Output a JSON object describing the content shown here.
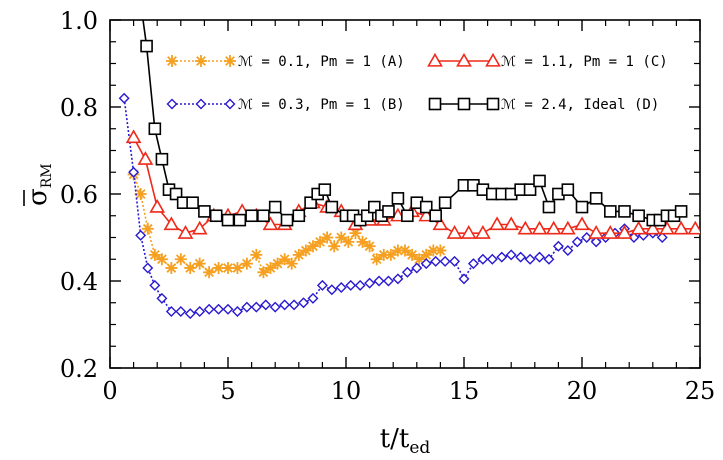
{
  "chart_data": {
    "type": "line",
    "xlabel": "t/t",
    "xlabel_sub": "ed",
    "ylabel": "σ",
    "ylabel_sub": "RM",
    "xlim": [
      0,
      25
    ],
    "ylim": [
      0.2,
      1.0
    ],
    "xticks": [
      0,
      5,
      10,
      15,
      20,
      25
    ],
    "xtick_labels": [
      "0",
      "5",
      "10",
      "15",
      "20",
      "25"
    ],
    "yticks": [
      0.2,
      0.4,
      0.6,
      0.8,
      1.0
    ],
    "ytick_labels": [
      "0.2",
      "0.4",
      "0.6",
      "0.8",
      "1.0"
    ],
    "grid": false,
    "legend_position": "top",
    "series": [
      {
        "name": "ℳ = 0.1, Pm = 1 (A)",
        "color": "#f5a020",
        "marker": "asterisk",
        "linestyle": "dotted",
        "x": [
          1.0,
          1.3,
          1.6,
          1.9,
          2.2,
          2.6,
          3.0,
          3.4,
          3.8,
          4.2,
          4.6,
          5.0,
          5.4,
          5.8,
          6.2,
          6.5,
          6.8,
          7.1,
          7.4,
          7.7,
          8.0,
          8.3,
          8.6,
          8.9,
          9.2,
          9.5,
          9.8,
          10.1,
          10.4,
          10.7,
          11.0,
          11.3,
          11.6,
          11.9,
          12.2,
          12.5,
          12.8,
          13.1,
          13.4,
          13.7,
          14.0
        ],
        "y": [
          0.645,
          0.6,
          0.52,
          0.46,
          0.45,
          0.43,
          0.45,
          0.43,
          0.44,
          0.42,
          0.43,
          0.43,
          0.43,
          0.44,
          0.46,
          0.42,
          0.43,
          0.44,
          0.45,
          0.44,
          0.46,
          0.47,
          0.48,
          0.49,
          0.5,
          0.48,
          0.5,
          0.49,
          0.51,
          0.49,
          0.48,
          0.45,
          0.46,
          0.46,
          0.47,
          0.47,
          0.46,
          0.45,
          0.46,
          0.47,
          0.47
        ]
      },
      {
        "name": "ℳ = 0.3, Pm = 1 (B)",
        "color": "#2a1ad0",
        "marker": "diamond",
        "linestyle": "dotted",
        "x": [
          0.6,
          1.0,
          1.3,
          1.6,
          1.9,
          2.2,
          2.6,
          3.0,
          3.4,
          3.8,
          4.2,
          4.6,
          5.0,
          5.4,
          5.8,
          6.2,
          6.6,
          7.0,
          7.4,
          7.8,
          8.2,
          8.6,
          9.0,
          9.4,
          9.8,
          10.2,
          10.6,
          11.0,
          11.4,
          11.8,
          12.2,
          12.6,
          13.0,
          13.4,
          13.8,
          14.2,
          14.6,
          15.0,
          15.4,
          15.8,
          16.2,
          16.6,
          17.0,
          17.4,
          17.8,
          18.2,
          18.6,
          19.0,
          19.4,
          19.8,
          20.2,
          20.6,
          21.0,
          21.4,
          21.8,
          22.2,
          22.6,
          23.0,
          23.4
        ],
        "y": [
          0.82,
          0.65,
          0.505,
          0.43,
          0.39,
          0.36,
          0.33,
          0.33,
          0.325,
          0.33,
          0.335,
          0.335,
          0.335,
          0.33,
          0.34,
          0.34,
          0.345,
          0.34,
          0.345,
          0.345,
          0.35,
          0.36,
          0.39,
          0.38,
          0.385,
          0.39,
          0.39,
          0.395,
          0.4,
          0.4,
          0.405,
          0.42,
          0.43,
          0.44,
          0.445,
          0.445,
          0.445,
          0.405,
          0.44,
          0.45,
          0.45,
          0.455,
          0.46,
          0.455,
          0.45,
          0.455,
          0.45,
          0.48,
          0.47,
          0.49,
          0.5,
          0.49,
          0.5,
          0.51,
          0.52,
          0.5,
          0.505,
          0.51,
          0.5
        ]
      },
      {
        "name": "ℳ = 1.1, Pm = 1 (C)",
        "color": "#ee2a1a",
        "marker": "triangle",
        "linestyle": "solid",
        "x": [
          1.0,
          1.5,
          2.0,
          2.6,
          3.2,
          3.8,
          4.4,
          5.0,
          5.6,
          6.2,
          6.8,
          7.4,
          8.0,
          8.6,
          9.2,
          9.8,
          10.4,
          11.0,
          11.6,
          12.2,
          12.8,
          13.4,
          14.0,
          14.6,
          15.2,
          15.8,
          16.4,
          17.0,
          17.6,
          18.2,
          18.8,
          19.4,
          20.0,
          20.6,
          21.2,
          21.8,
          22.4,
          23.0,
          23.6,
          24.2,
          24.8
        ],
        "y": [
          0.73,
          0.68,
          0.57,
          0.53,
          0.51,
          0.52,
          0.55,
          0.55,
          0.56,
          0.55,
          0.53,
          0.53,
          0.56,
          0.58,
          0.57,
          0.56,
          0.53,
          0.54,
          0.54,
          0.55,
          0.56,
          0.55,
          0.53,
          0.51,
          0.51,
          0.51,
          0.53,
          0.53,
          0.52,
          0.52,
          0.52,
          0.52,
          0.53,
          0.51,
          0.51,
          0.51,
          0.52,
          0.52,
          0.52,
          0.52,
          0.52
        ]
      },
      {
        "name": "ℳ = 2.4, Ideal (D)",
        "color": "#000000",
        "marker": "square",
        "linestyle": "solid",
        "x": [
          1.2,
          1.55,
          1.9,
          2.2,
          2.5,
          2.8,
          3.1,
          3.5,
          4.0,
          4.5,
          5.0,
          5.5,
          6.0,
          6.5,
          7.0,
          7.5,
          8.0,
          8.5,
          8.8,
          9.1,
          9.4,
          10.0,
          10.3,
          10.6,
          10.9,
          11.2,
          11.5,
          11.8,
          12.2,
          12.6,
          13.0,
          13.4,
          13.8,
          14.2,
          15.0,
          15.4,
          15.8,
          16.2,
          16.6,
          17.0,
          17.4,
          17.8,
          18.2,
          18.6,
          19.0,
          19.4,
          20.0,
          20.6,
          21.2,
          21.8,
          22.4,
          23.0,
          23.3,
          23.6,
          23.9,
          24.2
        ],
        "y": [
          1.08,
          0.94,
          0.75,
          0.68,
          0.61,
          0.6,
          0.58,
          0.58,
          0.56,
          0.55,
          0.54,
          0.54,
          0.55,
          0.55,
          0.57,
          0.54,
          0.55,
          0.58,
          0.6,
          0.61,
          0.57,
          0.55,
          0.55,
          0.54,
          0.55,
          0.57,
          0.55,
          0.56,
          0.59,
          0.55,
          0.58,
          0.57,
          0.55,
          0.58,
          0.62,
          0.62,
          0.61,
          0.6,
          0.6,
          0.6,
          0.61,
          0.61,
          0.63,
          0.57,
          0.6,
          0.61,
          0.57,
          0.59,
          0.56,
          0.56,
          0.55,
          0.54,
          0.54,
          0.55,
          0.55,
          0.56
        ]
      }
    ]
  }
}
